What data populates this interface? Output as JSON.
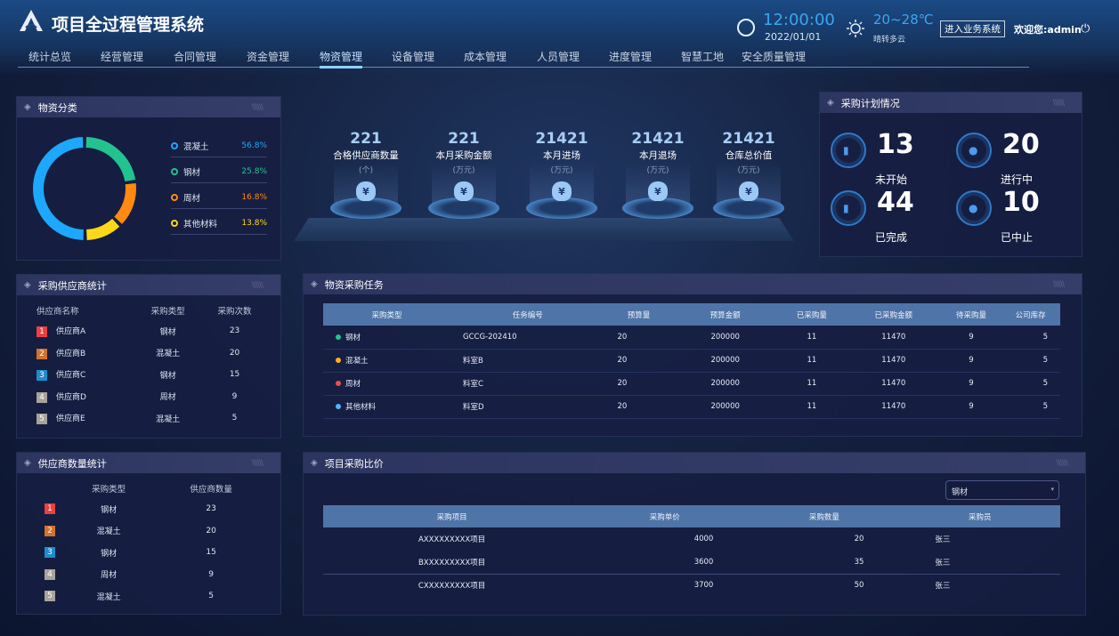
{
  "header": {
    "title": "项目全过程管理系统",
    "time": "12:00:00",
    "date": "2022/01/01",
    "temperature": "20~28℃",
    "weather": "晴转多云",
    "enter_button": "进入业务系统",
    "welcome": "欢迎您:admin"
  },
  "nav": {
    "items": [
      "统计总览",
      "经营管理",
      "合同管理",
      "资金管理",
      "物资管理",
      "设备管理",
      "成本管理",
      "人员管理",
      "进度管理",
      "智慧工地",
      "安全质量管理"
    ],
    "active": "物资管理"
  },
  "material_category": {
    "title": "物资分类",
    "items": [
      {
        "label": "混凝土",
        "pct": "56.8%",
        "color": "#1ea7ff"
      },
      {
        "label": "钢材",
        "pct": "25.8%",
        "color": "#22c38e"
      },
      {
        "label": "周材",
        "pct": "16.8%",
        "color": "#ff8a12"
      },
      {
        "label": "其他材料",
        "pct": "13.8%",
        "color": "#ffd71a"
      }
    ]
  },
  "stats": [
    {
      "value": "221",
      "label": "合格供应商数量",
      "unit": "(个)"
    },
    {
      "value": "221",
      "label": "本月采购金额",
      "unit": "(万元)"
    },
    {
      "value": "21421",
      "label": "本月进场",
      "unit": "(万元)"
    },
    {
      "value": "21421",
      "label": "本月退场",
      "unit": "(万元)"
    },
    {
      "value": "21421",
      "label": "仓库总价值",
      "unit": "(万元)"
    }
  ],
  "plan": {
    "title": "采购计划情况",
    "items": [
      {
        "value": "13",
        "label": "未开始",
        "icon": "building-icon"
      },
      {
        "value": "20",
        "label": "进行中",
        "icon": "user-icon"
      },
      {
        "value": "44",
        "label": "已完成",
        "icon": "bed-icon"
      },
      {
        "value": "10",
        "label": "已中止",
        "icon": "user-icon"
      }
    ]
  },
  "supplier_stats": {
    "title": "采购供应商统计",
    "headers": [
      "供应商名称",
      "采购类型",
      "采购次数"
    ],
    "rows": [
      [
        "供应商A",
        "钢材",
        "23"
      ],
      [
        "供应商B",
        "混凝土",
        "20"
      ],
      [
        "供应商C",
        "钢材",
        "15"
      ],
      [
        "供应商D",
        "周材",
        "9"
      ],
      [
        "供应商E",
        "混凝土",
        "5"
      ]
    ]
  },
  "supplier_count": {
    "title": "供应商数量统计",
    "headers": [
      "采购类型",
      "供应商数量"
    ],
    "rows": [
      [
        "钢材",
        "23"
      ],
      [
        "混凝土",
        "20"
      ],
      [
        "钢材",
        "15"
      ],
      [
        "周材",
        "9"
      ],
      [
        "混凝土",
        "5"
      ]
    ]
  },
  "rank_colors": [
    "#e8423f",
    "#d2722c",
    "#1f8ccc",
    "#a8a39a",
    "#a8a39a"
  ],
  "tasks": {
    "title": "物资采购任务",
    "headers": [
      "采购类型",
      "任务编号",
      "预算量",
      "预算金额",
      "已采购量",
      "已采购金额",
      "待采购量",
      "公司库存"
    ],
    "rows": [
      {
        "dot": "#22c38e",
        "cells": [
          "钢材",
          "GCCG-202410",
          "20",
          "200000",
          "11",
          "11470",
          "9",
          "5"
        ]
      },
      {
        "dot": "#ffb020",
        "cells": [
          "混凝土",
          "料室B",
          "20",
          "200000",
          "11",
          "11470",
          "9",
          "5"
        ]
      },
      {
        "dot": "#e8504f",
        "cells": [
          "周材",
          "料室C",
          "20",
          "200000",
          "11",
          "11470",
          "9",
          "5"
        ]
      },
      {
        "dot": "#5ab0ff",
        "cells": [
          "其他材料",
          "料室D",
          "20",
          "200000",
          "11",
          "11470",
          "9",
          "5"
        ]
      }
    ]
  },
  "compare": {
    "title": "项目采购比价",
    "select": "钢材",
    "headers": [
      "采购项目",
      "采购单价",
      "采购数量",
      "采购员"
    ],
    "rows": [
      [
        "AXXXXXXXXX项目",
        "4000",
        "20",
        "张三"
      ],
      [
        "BXXXXXXXXX项目",
        "3600",
        "35",
        "张三"
      ],
      [
        "CXXXXXXXXX项目",
        "3700",
        "50",
        "张三"
      ]
    ]
  }
}
